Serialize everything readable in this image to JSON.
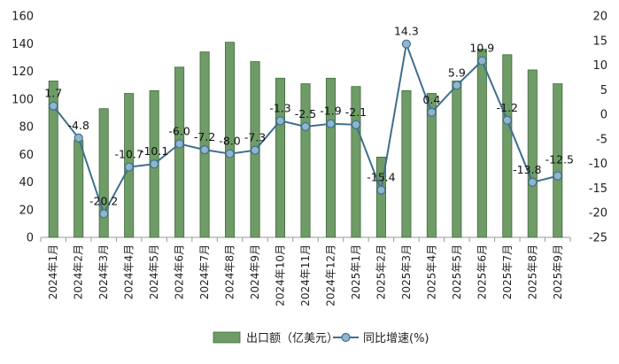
{
  "chart_data": {
    "type": "bar",
    "categories": [
      "2024年1月",
      "2024年2月",
      "2024年3月",
      "2024年4月",
      "2024年5月",
      "2024年6月",
      "2024年7月",
      "2024年8月",
      "2024年9月",
      "2024年10月",
      "2024年11月",
      "2024年12月",
      "2025年1月",
      "2025年2月",
      "2025年3月",
      "2025年4月",
      "2025年5月",
      "2025年6月",
      "2025年7月",
      "2025年8月",
      "2025年9月"
    ],
    "series": [
      {
        "name": "出口额（亿美元）",
        "type": "bar",
        "axis": "left",
        "values": [
          113,
          70,
          93,
          104,
          106,
          123,
          134,
          141,
          127,
          115,
          111,
          115,
          109,
          58,
          106,
          104,
          113,
          136,
          132,
          121,
          111
        ]
      },
      {
        "name": "同比增速(%)",
        "type": "line",
        "axis": "right",
        "values": [
          1.7,
          -4.8,
          -20.2,
          -10.7,
          -10.1,
          -6.0,
          -7.2,
          -8.0,
          -7.3,
          -1.3,
          -2.5,
          -1.9,
          -2.1,
          -15.4,
          14.3,
          0.4,
          5.9,
          10.9,
          -1.2,
          -13.8,
          -12.5
        ],
        "labels": [
          "1.7",
          "-4.8",
          "-20.2",
          "-10.7",
          "-10.1",
          "-6.0",
          "-7.2",
          "-8.0",
          "-7.3",
          "-1.3",
          "-2.5",
          "-1.9",
          "-2.1",
          "-15.4",
          "14.3",
          "0.4",
          "5.9",
          "10.9",
          "-1.2",
          "-13.8",
          "-12.5"
        ]
      }
    ],
    "y_left": {
      "range": [
        0,
        160
      ],
      "ticks": [
        "0",
        "20",
        "40",
        "60",
        "80",
        "100",
        "120",
        "140",
        "160"
      ]
    },
    "y_right": {
      "range": [
        -25,
        20
      ],
      "ticks": [
        "-25",
        "-20",
        "-15",
        "-10",
        "-5",
        "0",
        "5",
        "10",
        "15",
        "20"
      ]
    },
    "grid": false,
    "legend_position": "bottom-center",
    "colors": {
      "bar": "#6f9b67",
      "bar_edge": "#3f6b3a",
      "line": "#3f6f8d",
      "marker": "#8fb5cf"
    }
  }
}
